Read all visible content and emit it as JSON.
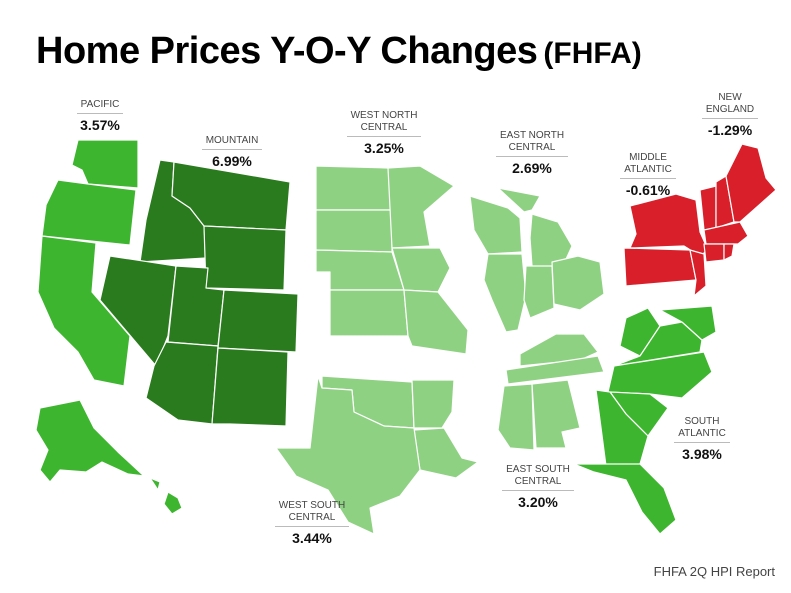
{
  "title": {
    "main": "Home Prices Y-O-Y Changes",
    "source_tag": "(FHFA)"
  },
  "source": "FHFA 2Q HPI Report",
  "colors": {
    "decline": "#d81f2a",
    "low_growth": "#8fd183",
    "mid_growth": "#3db52f",
    "high_growth": "#2a7a1e",
    "border": "#ffffff"
  },
  "regions": [
    {
      "id": "pacific",
      "name": "PACIFIC",
      "value": "3.57%"
    },
    {
      "id": "mountain",
      "name": "MOUNTAIN",
      "value": "6.99%"
    },
    {
      "id": "west_north_central",
      "name": "WEST NORTH\nCENTRAL",
      "value": "3.25%"
    },
    {
      "id": "east_north_central",
      "name": "EAST NORTH\nCENTRAL",
      "value": "2.69%"
    },
    {
      "id": "middle_atlantic",
      "name": "MIDDLE\nATLANTIC",
      "value": "-0.61%"
    },
    {
      "id": "new_england",
      "name": "NEW\nENGLAND",
      "value": "-1.29%"
    },
    {
      "id": "south_atlantic",
      "name": "SOUTH\nATLANTIC",
      "value": "3.98%"
    },
    {
      "id": "east_south_central",
      "name": "EAST SOUTH\nCENTRAL",
      "value": "3.20%"
    },
    {
      "id": "west_south_central",
      "name": "WEST SOUTH\nCENTRAL",
      "value": "3.44%"
    }
  ]
}
